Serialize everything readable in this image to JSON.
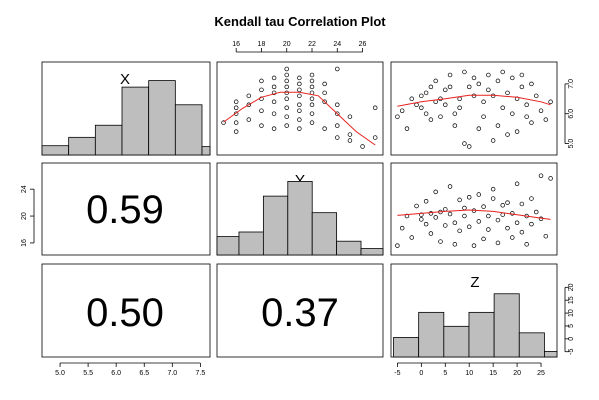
{
  "title": "Kendall tau Correlation Plot",
  "chart_data": {
    "type": "pairs",
    "title": "Kendall tau Correlation Plot",
    "variables": [
      "X",
      "Y",
      "Z"
    ],
    "correlations": [
      {
        "row": "Y",
        "col": "X",
        "value": "0.59"
      },
      {
        "row": "Z",
        "col": "X",
        "value": "0.50"
      },
      {
        "row": "Z",
        "col": "Y",
        "value": "0.37"
      }
    ],
    "axes": {
      "X": {
        "range": [
          4.75,
          7.7
        ],
        "ticks": [
          "5.0",
          "5.5",
          "6.0",
          "6.5",
          "7.0",
          "7.5"
        ],
        "tick_values": [
          5.0,
          5.5,
          6.0,
          6.5,
          7.0,
          7.5
        ]
      },
      "Y": {
        "range": [
          14.8,
          27.3
        ],
        "ticks": [
          "16",
          "18",
          "20",
          "22",
          "24",
          "26"
        ],
        "tick_values": [
          16,
          18,
          20,
          22,
          24,
          26
        ],
        "left_ticks": [
          "16",
          "20",
          "24"
        ],
        "left_tick_values": [
          16,
          20,
          24
        ]
      },
      "Z": {
        "range": [
          -5.5,
          27.5
        ],
        "ticks": [
          "-5",
          "0",
          "5",
          "10",
          "15",
          "20",
          "25"
        ],
        "tick_values": [
          -5,
          0,
          5,
          10,
          15,
          20,
          25
        ],
        "right_ticks": [
          "-5",
          "0",
          "5",
          "10",
          "15",
          "20"
        ],
        "right_tick_values": [
          -5,
          0,
          5,
          10,
          15,
          20
        ]
      },
      "X_right": {
        "ticks": [
          "5.0",
          "6.0",
          "7.0"
        ],
        "tick_values": [
          5.0,
          6.0,
          7.0
        ]
      }
    },
    "histograms": {
      "X": {
        "bins": [
          [
            4.5,
            5.0
          ],
          [
            5.0,
            5.5
          ],
          [
            5.5,
            6.0
          ],
          [
            6.0,
            6.5
          ],
          [
            6.5,
            7.0
          ],
          [
            7.0,
            7.5
          ],
          [
            7.5,
            8.0
          ]
        ],
        "heights": [
          0.1,
          0.19,
          0.32,
          0.73,
          0.8,
          0.54,
          0.09
        ]
      },
      "Y": {
        "bins": [
          [
            14,
            16
          ],
          [
            16,
            18
          ],
          [
            18,
            20
          ],
          [
            20,
            22
          ],
          [
            22,
            24
          ],
          [
            24,
            26
          ],
          [
            26,
            28
          ]
        ],
        "heights": [
          0.2,
          0.25,
          0.64,
          0.8,
          0.46,
          0.15,
          0.07
        ]
      },
      "Z": {
        "bins": [
          [
            -5,
            0
          ],
          [
            0,
            5
          ],
          [
            5,
            10
          ],
          [
            10,
            15
          ],
          [
            15,
            20
          ],
          [
            20,
            25
          ],
          [
            25,
            30
          ]
        ],
        "heights": [
          0.21,
          0.48,
          0.33,
          0.48,
          0.68,
          0.26,
          0.06
        ]
      }
    },
    "smoothers": {
      "XY": {
        "x": [
          15,
          16.5,
          18,
          19.5,
          21,
          22.5,
          24,
          25.5,
          27
        ],
        "y": [
          5.72,
          6.18,
          6.55,
          6.72,
          6.72,
          6.6,
          6.0,
          5.4,
          4.95
        ]
      },
      "XZ": {
        "x": [
          -5,
          0,
          5,
          10,
          15,
          20,
          25,
          27
        ],
        "y": [
          6.25,
          6.4,
          6.5,
          6.62,
          6.62,
          6.55,
          6.4,
          6.3
        ]
      },
      "YZ": {
        "x": [
          -5,
          0,
          5,
          10,
          15,
          20,
          25,
          27
        ],
        "y": [
          20.1,
          20.4,
          20.7,
          20.9,
          20.7,
          20.2,
          19.7,
          19.5
        ]
      }
    },
    "scatter": {
      "XY": [
        [
          15,
          5.7
        ],
        [
          16,
          5.4
        ],
        [
          16,
          5.7
        ],
        [
          16,
          6.0
        ],
        [
          16,
          6.2
        ],
        [
          16,
          6.4
        ],
        [
          17,
          5.8
        ],
        [
          17,
          6.3
        ],
        [
          17,
          6.6
        ],
        [
          18,
          5.6
        ],
        [
          18,
          6.1
        ],
        [
          18,
          6.5
        ],
        [
          18,
          6.8
        ],
        [
          18,
          7.1
        ],
        [
          19,
          5.5
        ],
        [
          19,
          6.0
        ],
        [
          19,
          6.4
        ],
        [
          19,
          6.7
        ],
        [
          19,
          6.9
        ],
        [
          19,
          7.2
        ],
        [
          20,
          5.6
        ],
        [
          20,
          5.9
        ],
        [
          20,
          6.2
        ],
        [
          20,
          6.5
        ],
        [
          20,
          6.7
        ],
        [
          20,
          6.9
        ],
        [
          20,
          7.1
        ],
        [
          20,
          7.3
        ],
        [
          20,
          7.5
        ],
        [
          21,
          5.5
        ],
        [
          21,
          5.8
        ],
        [
          21,
          6.1
        ],
        [
          21,
          6.3
        ],
        [
          21,
          6.6
        ],
        [
          21,
          6.8
        ],
        [
          21,
          7.0
        ],
        [
          21,
          7.2
        ],
        [
          22,
          5.7
        ],
        [
          22,
          6.0
        ],
        [
          22,
          6.3
        ],
        [
          22,
          6.5
        ],
        [
          22,
          6.7
        ],
        [
          22,
          6.9
        ],
        [
          22,
          7.1
        ],
        [
          22,
          7.3
        ],
        [
          23,
          5.5
        ],
        [
          23,
          6.4
        ],
        [
          23,
          6.7
        ],
        [
          23,
          7.0
        ],
        [
          24,
          5.2
        ],
        [
          24,
          5.6
        ],
        [
          24,
          6.0
        ],
        [
          24,
          6.3
        ],
        [
          24,
          7.5
        ],
        [
          25,
          5.1
        ],
        [
          25,
          5.3
        ],
        [
          25,
          5.9
        ],
        [
          26,
          4.9
        ],
        [
          27,
          5.2
        ],
        [
          27,
          6.2
        ]
      ],
      "XZ": [
        [
          -5,
          5.9
        ],
        [
          -4,
          6.1
        ],
        [
          -3,
          5.5
        ],
        [
          -2,
          6.5
        ],
        [
          -1,
          6.3
        ],
        [
          0,
          6.2
        ],
        [
          0,
          6.6
        ],
        [
          1,
          6.7
        ],
        [
          1,
          6.0
        ],
        [
          2,
          6.9
        ],
        [
          2,
          5.8
        ],
        [
          3,
          6.4
        ],
        [
          3,
          7.1
        ],
        [
          4,
          6.5
        ],
        [
          4,
          5.9
        ],
        [
          5,
          6.3
        ],
        [
          5,
          6.8
        ],
        [
          6,
          7.3
        ],
        [
          6,
          6.9
        ],
        [
          7,
          6.0
        ],
        [
          7,
          5.6
        ],
        [
          8,
          6.5
        ],
        [
          8,
          6.2
        ],
        [
          9,
          7.4
        ],
        [
          9,
          5.0
        ],
        [
          10,
          4.9
        ],
        [
          10,
          6.9
        ],
        [
          11,
          7.2
        ],
        [
          11,
          6.6
        ],
        [
          12,
          5.5
        ],
        [
          12,
          7.0
        ],
        [
          13,
          6.4
        ],
        [
          13,
          5.9
        ],
        [
          14,
          7.3
        ],
        [
          14,
          6.8
        ],
        [
          15,
          5.1
        ],
        [
          15,
          6.6
        ],
        [
          16,
          7.1
        ],
        [
          16,
          5.6
        ],
        [
          17,
          6.2
        ],
        [
          17,
          7.4
        ],
        [
          18,
          5.3
        ],
        [
          18,
          6.7
        ],
        [
          19,
          6.0
        ],
        [
          19,
          7.2
        ],
        [
          20,
          6.5
        ],
        [
          20,
          5.4
        ],
        [
          21,
          6.9
        ],
        [
          21,
          7.3
        ],
        [
          22,
          6.3
        ],
        [
          22,
          5.9
        ],
        [
          23,
          7.0
        ],
        [
          23,
          5.7
        ],
        [
          24,
          6.6
        ],
        [
          25,
          6.1
        ],
        [
          26,
          5.8
        ],
        [
          27,
          6.4
        ]
      ],
      "YZ": [
        [
          -5,
          15.6
        ],
        [
          -4,
          18.2
        ],
        [
          -3,
          20.0
        ],
        [
          -2,
          16.8
        ],
        [
          -1,
          21.5
        ],
        [
          0,
          20.2
        ],
        [
          0,
          19.5
        ],
        [
          1,
          18.8
        ],
        [
          1,
          22.2
        ],
        [
          2,
          20.4
        ],
        [
          2,
          17.4
        ],
        [
          3,
          23.6
        ],
        [
          3,
          19.8
        ],
        [
          4,
          20.6
        ],
        [
          4,
          16.2
        ],
        [
          5,
          21.0
        ],
        [
          5,
          18.6
        ],
        [
          6,
          24.4
        ],
        [
          6,
          20.3
        ],
        [
          7,
          19.0
        ],
        [
          7,
          15.8
        ],
        [
          8,
          22.4
        ],
        [
          8,
          17.8
        ],
        [
          9,
          21.2
        ],
        [
          9,
          20.0
        ],
        [
          10,
          18.4
        ],
        [
          10,
          22.8
        ],
        [
          11,
          15.6
        ],
        [
          11,
          20.8
        ],
        [
          12,
          19.2
        ],
        [
          12,
          23.2
        ],
        [
          13,
          16.6
        ],
        [
          13,
          21.4
        ],
        [
          14,
          20.0
        ],
        [
          14,
          18.0
        ],
        [
          15,
          22.6
        ],
        [
          15,
          24.0
        ],
        [
          16,
          19.4
        ],
        [
          16,
          16.0
        ],
        [
          17,
          21.6
        ],
        [
          17,
          20.2
        ],
        [
          18,
          18.2
        ],
        [
          18,
          22.0
        ],
        [
          19,
          16.8
        ],
        [
          19,
          20.4
        ],
        [
          20,
          24.8
        ],
        [
          20,
          19.0
        ],
        [
          21,
          21.8
        ],
        [
          21,
          17.6
        ],
        [
          22,
          20.0
        ],
        [
          22,
          15.8
        ],
        [
          23,
          22.6
        ],
        [
          23,
          18.8
        ],
        [
          24,
          20.6
        ],
        [
          25,
          19.6
        ],
        [
          25,
          26.0
        ],
        [
          26,
          17.0
        ],
        [
          27,
          25.6
        ]
      ]
    }
  }
}
